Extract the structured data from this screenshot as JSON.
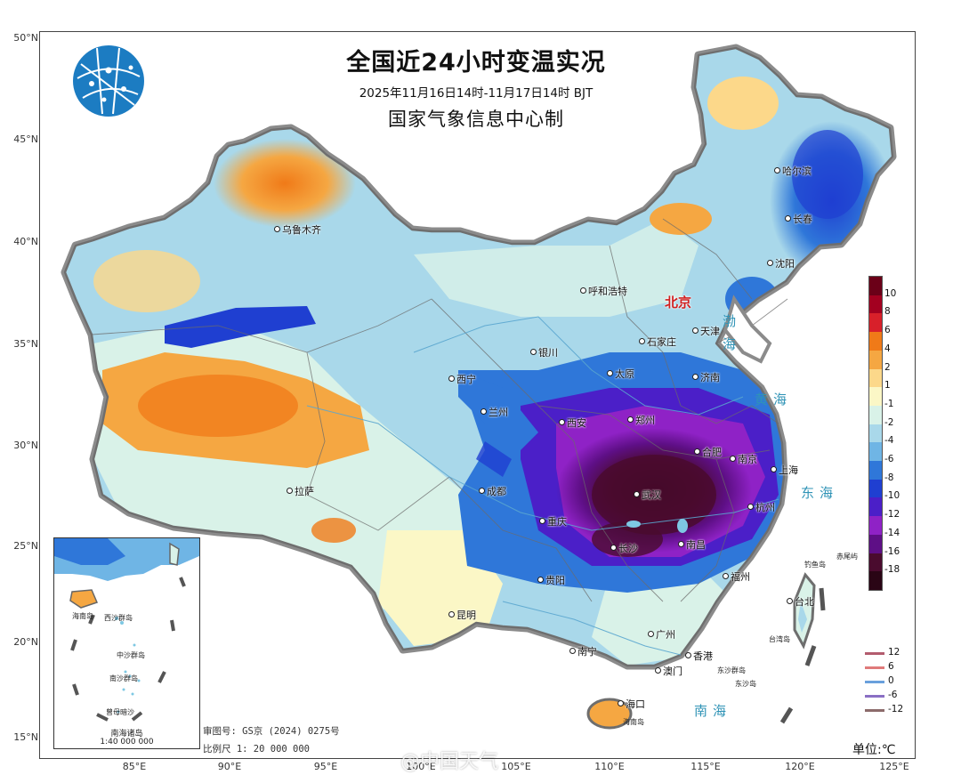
{
  "title": {
    "main": "全国近24小时变温实况",
    "period": "2025年11月16日14时-11月17日14时 BJT",
    "issuer": "国家气象信息中心制"
  },
  "axes": {
    "latitude": [
      "50°N",
      "45°N",
      "40°N",
      "35°N",
      "30°N",
      "25°N",
      "20°N",
      "15°N"
    ],
    "longitude": [
      "85°E",
      "90°E",
      "95°E",
      "100°E",
      "105°E",
      "110°E",
      "115°E",
      "120°E",
      "125°E"
    ]
  },
  "cities": [
    {
      "name": "乌鲁木齐",
      "type": "city"
    },
    {
      "name": "哈尔滨",
      "type": "city"
    },
    {
      "name": "长春",
      "type": "city"
    },
    {
      "name": "沈阳",
      "type": "city"
    },
    {
      "name": "呼和浩特",
      "type": "city"
    },
    {
      "name": "北京",
      "type": "capital"
    },
    {
      "name": "天津",
      "type": "city"
    },
    {
      "name": "石家庄",
      "type": "city"
    },
    {
      "name": "银川",
      "type": "city"
    },
    {
      "name": "太原",
      "type": "city"
    },
    {
      "name": "济南",
      "type": "city"
    },
    {
      "name": "西宁",
      "type": "city"
    },
    {
      "name": "兰州",
      "type": "city"
    },
    {
      "name": "西安",
      "type": "city"
    },
    {
      "name": "郑州",
      "type": "city"
    },
    {
      "name": "合肥",
      "type": "city"
    },
    {
      "name": "上海",
      "type": "city"
    },
    {
      "name": "南京",
      "type": "city"
    },
    {
      "name": "杭州",
      "type": "city"
    },
    {
      "name": "拉萨",
      "type": "city"
    },
    {
      "name": "成都",
      "type": "city"
    },
    {
      "name": "重庆",
      "type": "city"
    },
    {
      "name": "武汉",
      "type": "city"
    },
    {
      "name": "长沙",
      "type": "city"
    },
    {
      "name": "南昌",
      "type": "city"
    },
    {
      "name": "福州",
      "type": "city"
    },
    {
      "name": "贵阳",
      "type": "city"
    },
    {
      "name": "昆明",
      "type": "city"
    },
    {
      "name": "南宁",
      "type": "city"
    },
    {
      "name": "广州",
      "type": "city"
    },
    {
      "name": "香港",
      "type": "city"
    },
    {
      "name": "澳门",
      "type": "city"
    },
    {
      "name": "台北",
      "type": "city"
    },
    {
      "name": "海口",
      "type": "city"
    }
  ],
  "seas": [
    "渤海",
    "黄海",
    "东海",
    "南海"
  ],
  "islands": [
    "钓鱼岛",
    "赤尾屿",
    "台湾岛",
    "东沙群岛",
    "东沙岛",
    "海南岛"
  ],
  "inset": {
    "caption": "南海诸岛",
    "scale": "1:40 000 000",
    "labels": [
      "海南岛",
      "西沙群岛",
      "南沙群岛",
      "曾母暗沙",
      "中沙群岛"
    ]
  },
  "legend": {
    "unit": "单位:℃",
    "levels": [
      "10",
      "8",
      "6",
      "4",
      "2",
      "1",
      "-1",
      "-2",
      "-4",
      "-6",
      "-8",
      "-10",
      "-12",
      "-14",
      "-16",
      "-18"
    ],
    "colors": [
      "#6b0018",
      "#a30020",
      "#d8202a",
      "#f07a18",
      "#f5a742",
      "#fcd88a",
      "#fbf7c6",
      "#d9f2e8",
      "#a9d8ea",
      "#6fb5e5",
      "#2f77d9",
      "#1f3fd1",
      "#4b1fc8",
      "#8f22c6",
      "#5e0f86",
      "#4a0b2e",
      "#2a0515"
    ]
  },
  "isoline_legend": [
    {
      "label": "12",
      "color": "#b35c6e"
    },
    {
      "label": "6",
      "color": "#e07a7a"
    },
    {
      "label": "0",
      "color": "#6aa0dc"
    },
    {
      "label": "-6",
      "color": "#8a6fc4"
    },
    {
      "label": "-12",
      "color": "#8c6b6b"
    }
  ],
  "footnotes": {
    "review_number": "审图号: GS京 (2024) 0275号",
    "scale": "比例尺 1: 20 000 000"
  },
  "watermark": "@中国天气"
}
